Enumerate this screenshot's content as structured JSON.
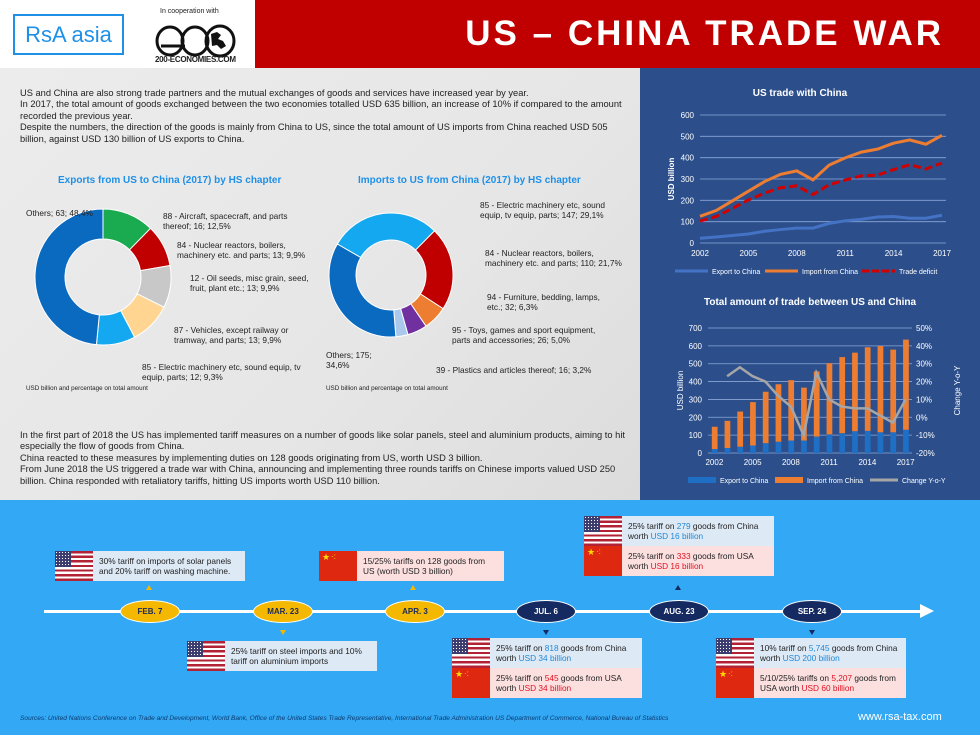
{
  "header": {
    "logo": "RsA asia",
    "cooperation_label": "In cooperation with",
    "partner_logo": "G200",
    "partner_url": "200-ECONOMIES.COM",
    "title": "US – CHINA TRADE WAR"
  },
  "intro": {
    "p1": "US and China are also strong trade partners and the mutual exchanges of goods and services have increased year by year.",
    "p2": "In 2017, the total amount of goods exchanged between the two economies totalled USD 635 billion, an increase of 10% if compared to the amount recorded the previous year.",
    "p3": "Despite the numbers, the direction of the goods is mainly from China to US, since the total amount of US imports from China reached USD 505 billion, against USD 130 billion of US exports to China."
  },
  "body2": {
    "p1": "In the first part of 2018 the US has implemented tariff measures on a number of goods like solar panels, steel and aluminium products, aiming to hit especially the flow of goods from China.",
    "p2": "China reacted to these measures by implementing duties on 128 goods originating from US, worth USD 3 billion.",
    "p3": "From June 2018 the US triggered a trade war with China, announcing and implementing three rounds tariffs on Chinese imports valued USD 250 billion. China responded with retaliatory tariffs, hitting US imports worth USD 110 billion."
  },
  "chart_data": [
    {
      "type": "pie",
      "title": "Exports from US to China (2017) by HS chapter",
      "note": "USD billion and percentage on total amount",
      "slices": [
        {
          "label": "88 - Aircraft, spacecraft, and parts thereof",
          "value": 16,
          "pct": "12,5%",
          "color": "#1aaa50"
        },
        {
          "label": "84 - Nuclear reactors, boilers, machinery etc. and parts",
          "value": 13,
          "pct": "9,9%",
          "color": "#c00000"
        },
        {
          "label": "12 - Oil seeds, misc grain, seed, fruit, plant etc.",
          "value": 13,
          "pct": "9,9%",
          "color": "#c8c8c8"
        },
        {
          "label": "87 - Vehicles, except railway or tramway, and parts",
          "value": 13,
          "pct": "9,9%",
          "color": "#ffd591"
        },
        {
          "label": "85 - Electric machinery etc, sound equip, tv equip, parts",
          "value": 12,
          "pct": "9,3%",
          "color": "#14a8f0"
        },
        {
          "label": "Others",
          "value": 63,
          "pct": "48,4%",
          "color": "#0a6ac0"
        }
      ],
      "labels_text": [
        "88 - Aircraft, spacecraft, and parts thereof; 16; 12,5%",
        "84 - Nuclear reactors, boilers, machinery etc. and parts; 13; 9,9%",
        "12 - Oil seeds, misc grain, seed, fruit, plant etc.; 13; 9,9%",
        "87 - Vehicles, except railway or tramway, and parts; 13; 9,9%",
        "85 - Electric machinery etc, sound equip, tv equip, parts; 12; 9,3%",
        "Others; 63; 48,4%"
      ]
    },
    {
      "type": "pie",
      "title": "Imports to US from China (2017) by HS chapter",
      "note": "USD billion and percentage on total amount",
      "slices": [
        {
          "label": "85 - Electric machinery etc, sound equip, tv equip, parts",
          "value": 147,
          "pct": "29,1%",
          "color": "#14a8f0"
        },
        {
          "label": "84 - Nuclear reactors, boilers, machinery etc. and parts",
          "value": 110,
          "pct": "21,7%",
          "color": "#c00000"
        },
        {
          "label": "94 - Furniture, bedding, lamps, etc.",
          "value": 32,
          "pct": "6,3%",
          "color": "#ed7d31"
        },
        {
          "label": "95 - Toys, games and sport equipment, parts and accessories",
          "value": 26,
          "pct": "5,0%",
          "color": "#7030a0"
        },
        {
          "label": "39 - Plastics and articles thereof",
          "value": 16,
          "pct": "3,2%",
          "color": "#a9c8ec"
        },
        {
          "label": "Others",
          "value": 175,
          "pct": "34,6%",
          "color": "#0a6ac0"
        }
      ],
      "labels_text": [
        "85 - Electric machinery etc, sound equip, tv equip, parts; 147; 29,1%",
        "84 - Nuclear reactors, boilers, machinery etc. and parts; 110; 21,7%",
        "94 - Furniture, bedding, lamps, etc.; 32; 6,3%",
        "95 - Toys, games and sport equipment, parts and accessories; 26; 5,0%",
        "39 - Plastics and articles thereof; 16; 3,2%",
        "Others; 175; 34,6%"
      ]
    },
    {
      "type": "line",
      "title": "US trade with China",
      "xlabel": "",
      "ylabel": "USD billion",
      "ylim": [
        0,
        600
      ],
      "yticks": [
        0,
        100,
        200,
        300,
        400,
        500,
        600
      ],
      "xticks": [
        "2002",
        "2005",
        "2008",
        "2011",
        "2014",
        "2017"
      ],
      "x": [
        2002,
        2003,
        2004,
        2005,
        2006,
        2007,
        2008,
        2009,
        2010,
        2011,
        2012,
        2013,
        2014,
        2015,
        2016,
        2017
      ],
      "series": [
        {
          "name": "Export to China",
          "color": "#4472c4",
          "values": [
            22,
            28,
            35,
            42,
            55,
            63,
            70,
            70,
            92,
            104,
            111,
            122,
            124,
            116,
            116,
            130
          ]
        },
        {
          "name": "Import from China",
          "color": "#ed7d31",
          "values": [
            125,
            152,
            197,
            243,
            288,
            322,
            338,
            296,
            365,
            399,
            426,
            440,
            468,
            483,
            463,
            505
          ]
        },
        {
          "name": "Trade deficit",
          "color": "#d00000",
          "style": "dashed",
          "values": [
            103,
            124,
            162,
            202,
            234,
            259,
            268,
            227,
            273,
            295,
            315,
            318,
            344,
            367,
            347,
            375
          ]
        }
      ],
      "legend_position": "bottom"
    },
    {
      "type": "bar",
      "title": "Total amount of trade between US and China",
      "ylabel": "USD billion",
      "y2label": "Change Y-o-Y",
      "ylim": [
        0,
        700
      ],
      "y2lim": [
        -20,
        50
      ],
      "yticks": [
        0,
        100,
        200,
        300,
        400,
        500,
        600,
        700
      ],
      "y2ticks": [
        "-20%",
        "-10%",
        "0%",
        "10%",
        "20%",
        "30%",
        "40%",
        "50%"
      ],
      "xticks": [
        "2002",
        "2005",
        "2008",
        "2011",
        "2014",
        "2017"
      ],
      "categories": [
        "2002",
        "2003",
        "2004",
        "2005",
        "2006",
        "2007",
        "2008",
        "2009",
        "2010",
        "2011",
        "2012",
        "2013",
        "2014",
        "2015",
        "2016",
        "2017"
      ],
      "stacked": true,
      "series": [
        {
          "name": "Export to China",
          "color": "#1f6fc4",
          "values": [
            22,
            28,
            35,
            42,
            55,
            63,
            70,
            70,
            92,
            104,
            111,
            122,
            124,
            116,
            116,
            130
          ]
        },
        {
          "name": "Import from China",
          "color": "#ed7d31",
          "values": [
            125,
            152,
            197,
            243,
            288,
            322,
            338,
            296,
            365,
            399,
            426,
            440,
            468,
            483,
            463,
            505
          ]
        },
        {
          "name": "Change Y-o-Y",
          "color": "#a6a6a6",
          "type": "line",
          "axis": "y2",
          "values": [
            null,
            23,
            28,
            23,
            20,
            12,
            6,
            -10,
            25,
            10,
            6,
            5,
            5,
            1,
            -3,
            10
          ]
        }
      ],
      "legend_position": "bottom"
    }
  ],
  "timeline": {
    "dates": [
      {
        "label": "FEB. 7",
        "style": "gold"
      },
      {
        "label": "MAR. 23",
        "style": "gold"
      },
      {
        "label": "APR. 3",
        "style": "gold"
      },
      {
        "label": "JUL. 6",
        "style": "navy"
      },
      {
        "label": "AUG. 23",
        "style": "navy"
      },
      {
        "label": "SEP. 24",
        "style": "navy"
      }
    ],
    "events": {
      "feb7": {
        "country": "US",
        "text": "30% tariff on imports of solar panels and 20% tariff on washing machine."
      },
      "mar23": {
        "country": "US",
        "text": "25% tariff on steel imports and 10% tariff on aluminium imports"
      },
      "apr3": {
        "country": "China",
        "text": "15/25% tariffs on 128 goods from US (worth USD 3 billion)"
      },
      "jul6_us": {
        "pre": "25% tariff on ",
        "num": "818",
        "mid": " goods from China",
        "worth": "worth ",
        "amount": "USD 34 billion"
      },
      "jul6_cn": {
        "pre": "25% tariff on ",
        "num": "545",
        "mid": " goods from USA",
        "worth": "worth ",
        "amount": "USD 34 billion"
      },
      "aug23_us": {
        "pre": "25% tariff on ",
        "num": "279",
        "mid": " goods from China",
        "worth": "worth ",
        "amount": "USD 16 billion"
      },
      "aug23_cn": {
        "pre": "25% tariff on ",
        "num": "333",
        "mid": " goods from USA",
        "worth": "worth ",
        "amount": "USD 16 billion"
      },
      "sep24_us": {
        "pre": "10% tariff on ",
        "num": "5,745",
        "mid": " goods from China",
        "worth": "worth ",
        "amount": "USD 200 billion"
      },
      "sep24_cn": {
        "pre": "5/10/25% tariffs on ",
        "num": "5,207",
        "mid": " goods from",
        "worth": "USA worth ",
        "amount": "USD 60 billion"
      }
    }
  },
  "footer": {
    "sources": "Sources: United Nations Conference on Trade and Development, World Bank, Office of the United States Trade Representative, International Trade Administration US Department of Commerce, National Bureau of Statistics",
    "website": "www.rsa-tax.com"
  },
  "colors": {
    "title_red": "#c00000",
    "accent_blue": "#1e90e8",
    "timeline_bg": "#33a8f5",
    "chart_panel_bg": "#2c4f8c",
    "date_gold": "#f5b800",
    "date_navy": "#142a60"
  }
}
